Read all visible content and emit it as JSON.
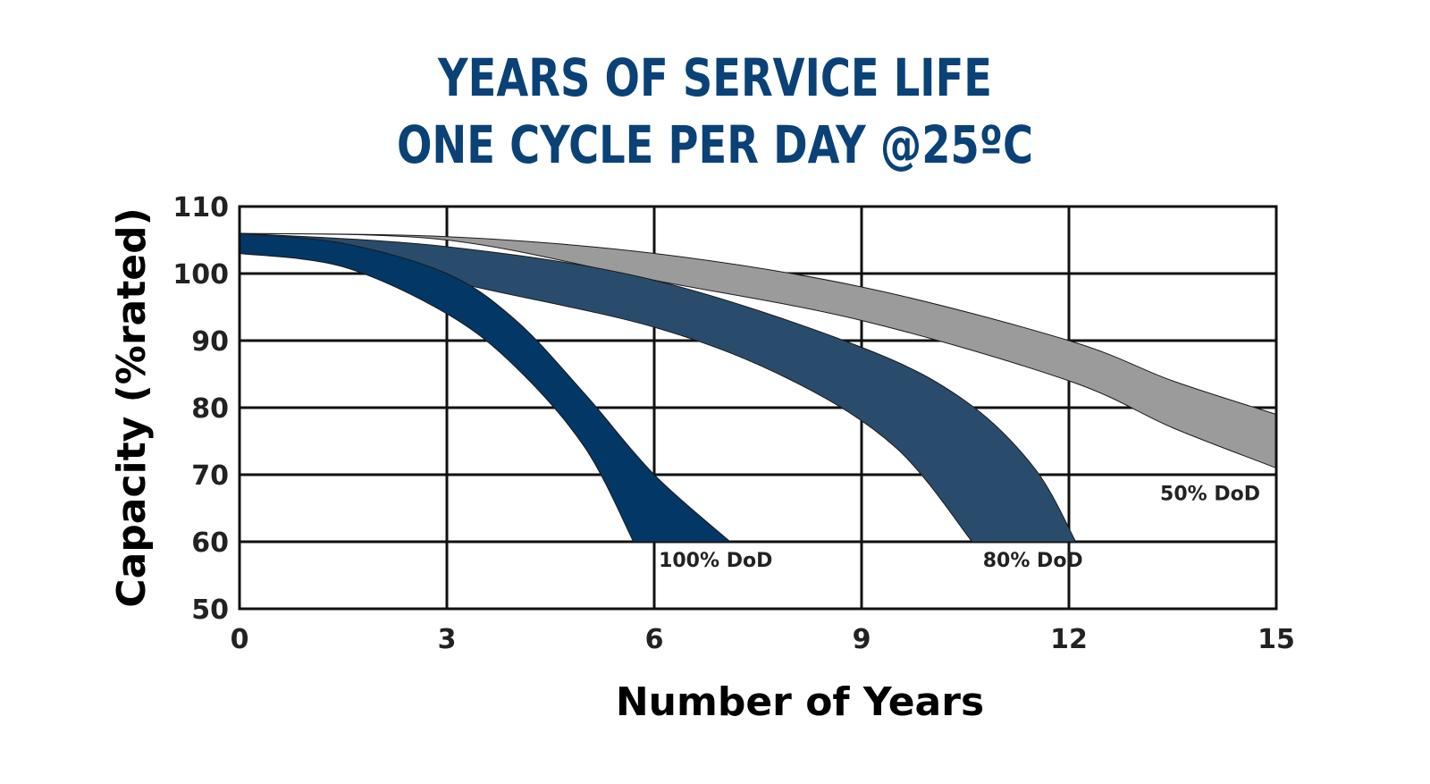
{
  "chart_data": {
    "type": "area",
    "title_lines": [
      "YEARS OF SERVICE LIFE",
      "ONE CYCLE PER DAY @25ºC"
    ],
    "xlabel": "Number of Years",
    "ylabel": "Capacity (%rated)",
    "xlim": [
      0,
      15
    ],
    "ylim": [
      50,
      110
    ],
    "xticks": [
      "0",
      "3",
      "6",
      "9",
      "12",
      "15"
    ],
    "yticks": [
      "110",
      "100",
      "90",
      "80",
      "70",
      "60",
      "50"
    ],
    "grid": true,
    "series": [
      {
        "name": "100% DoD",
        "color": "#023766",
        "upper": [
          [
            0,
            106
          ],
          [
            1.5,
            104.5
          ],
          [
            3,
            100
          ],
          [
            4,
            93
          ],
          [
            5,
            82
          ],
          [
            6,
            70
          ],
          [
            7.1,
            60
          ]
        ],
        "lower": [
          [
            0,
            103
          ],
          [
            1.5,
            101
          ],
          [
            3,
            94
          ],
          [
            4,
            86
          ],
          [
            5,
            74
          ],
          [
            5.7,
            60
          ]
        ]
      },
      {
        "name": "80% DoD",
        "color": "#2a4c6c",
        "upper": [
          [
            0,
            106
          ],
          [
            3,
            104
          ],
          [
            6,
            99
          ],
          [
            9,
            89
          ],
          [
            10.5,
            81
          ],
          [
            11.5,
            71
          ],
          [
            12.1,
            60
          ]
        ],
        "lower": [
          [
            0,
            106
          ],
          [
            1.5,
            104
          ],
          [
            3,
            99
          ],
          [
            6,
            92
          ],
          [
            8,
            84
          ],
          [
            9.5,
            74
          ],
          [
            10.6,
            60
          ]
        ]
      },
      {
        "name": "50% DoD",
        "color": "#9b9b9b",
        "upper": [
          [
            0,
            106
          ],
          [
            3,
            105.5
          ],
          [
            6,
            103
          ],
          [
            9,
            98
          ],
          [
            12,
            90
          ],
          [
            13.5,
            84
          ],
          [
            15,
            79
          ]
        ],
        "lower": [
          [
            0,
            106
          ],
          [
            3,
            105
          ],
          [
            6,
            99
          ],
          [
            9,
            93
          ],
          [
            12,
            84
          ],
          [
            13.5,
            77
          ],
          [
            15,
            71
          ]
        ]
      }
    ]
  }
}
